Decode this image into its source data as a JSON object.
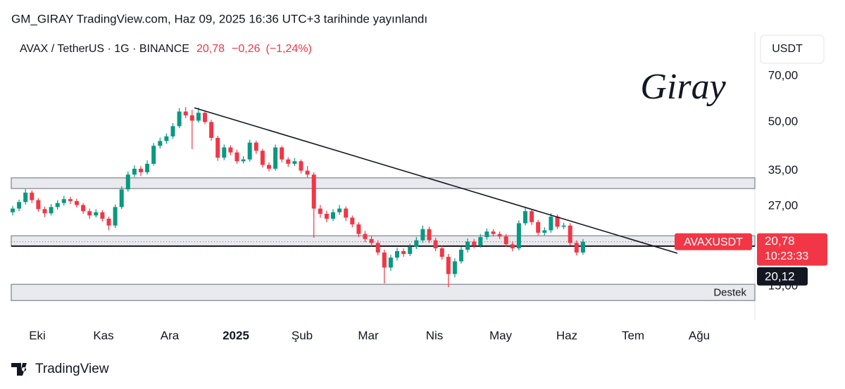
{
  "header": "GM_GIRAY TradingView.com, Haz 09, 2025 16:36 UTC+3 tarihinde yayınlandı",
  "chart_data": {
    "type": "candlestick",
    "symbol": "AVAX / TetherUS · 1G · BINANCE",
    "last": {
      "value": 20.78,
      "label": "20,78"
    },
    "change": {
      "value": -0.26,
      "label": "−0,26"
    },
    "change_pct": {
      "value": -1.24,
      "label": "(−1,24%)"
    },
    "currency": "USDT",
    "ticker": "AVAXUSDT",
    "countdown": "10:23:33",
    "signature": "Giray",
    "x_labels": [
      "Eki",
      "Kas",
      "Ara",
      "2025",
      "Şub",
      "Mar",
      "Nis",
      "May",
      "Haz",
      "Tem",
      "Ağu"
    ],
    "up_color": "#089981",
    "down_color": "#f23645",
    "log_scale": true,
    "ylim": [
      11.7,
      97
    ],
    "yticks": [
      {
        "value": 15,
        "label": "15,00"
      },
      {
        "value": 27,
        "label": "27,00"
      },
      {
        "value": 35,
        "label": "35,00"
      },
      {
        "value": 50,
        "label": "50,00"
      },
      {
        "value": 70,
        "label": "70,00"
      }
    ],
    "zones": [
      {
        "low": 30.7,
        "high": 33.2
      },
      {
        "low": 20.12,
        "high": 21.7
      },
      {
        "low": 13.5,
        "high": 15.2,
        "label": "Destek"
      }
    ],
    "level": {
      "value": 20.12,
      "label": "20,12"
    },
    "trendline": [
      55.5,
      19.1
    ],
    "ohlc": [
      [
        25.8,
        27.0,
        25.2,
        26.5
      ],
      [
        26.5,
        28.3,
        26.0,
        27.8
      ],
      [
        27.8,
        30.6,
        27.3,
        29.8
      ],
      [
        29.8,
        30.3,
        27.6,
        28.2
      ],
      [
        28.2,
        28.6,
        25.9,
        26.4
      ],
      [
        26.4,
        26.9,
        24.9,
        25.6
      ],
      [
        25.6,
        27.4,
        25.2,
        26.8
      ],
      [
        26.8,
        28.2,
        26.3,
        27.6
      ],
      [
        27.6,
        29.1,
        27.1,
        28.4
      ],
      [
        28.4,
        28.9,
        27.4,
        28.0
      ],
      [
        28.0,
        28.5,
        26.7,
        27.2
      ],
      [
        27.2,
        27.6,
        25.5,
        26.0
      ],
      [
        26.0,
        26.5,
        24.6,
        25.2
      ],
      [
        25.2,
        26.4,
        24.8,
        25.8
      ],
      [
        25.8,
        26.2,
        24.1,
        24.6
      ],
      [
        24.6,
        25.0,
        22.6,
        23.4
      ],
      [
        23.4,
        27.3,
        23.0,
        26.8
      ],
      [
        26.8,
        31.2,
        26.4,
        30.5
      ],
      [
        30.5,
        34.8,
        30.0,
        34.0
      ],
      [
        34.0,
        36.4,
        33.4,
        35.5
      ],
      [
        35.5,
        36.2,
        33.6,
        34.6
      ],
      [
        34.6,
        37.8,
        34.0,
        36.8
      ],
      [
        36.8,
        42.9,
        36.3,
        42.0
      ],
      [
        42.0,
        44.6,
        41.2,
        43.5
      ],
      [
        43.5,
        46.0,
        42.6,
        45.0
      ],
      [
        45.0,
        49.6,
        44.2,
        48.5
      ],
      [
        48.5,
        55.4,
        47.8,
        54.0
      ],
      [
        54.0,
        55.8,
        51.4,
        52.5
      ],
      [
        52.5,
        54.6,
        41.0,
        50.5
      ],
      [
        50.5,
        55.6,
        49.8,
        53.5
      ],
      [
        53.5,
        54.2,
        49.2,
        50.0
      ],
      [
        50.0,
        50.8,
        43.6,
        44.5
      ],
      [
        44.5,
        45.2,
        37.6,
        38.5
      ],
      [
        38.5,
        42.4,
        37.8,
        41.5
      ],
      [
        41.5,
        42.2,
        39.2,
        40.0
      ],
      [
        40.0,
        40.8,
        36.8,
        37.5
      ],
      [
        37.5,
        38.9,
        36.9,
        38.0
      ],
      [
        38.0,
        43.9,
        37.4,
        43.0
      ],
      [
        43.0,
        43.6,
        39.6,
        40.5
      ],
      [
        40.5,
        41.1,
        35.8,
        36.5
      ],
      [
        36.5,
        37.2,
        34.8,
        35.5
      ],
      [
        35.5,
        42.4,
        35.0,
        41.5
      ],
      [
        41.5,
        42.0,
        37.2,
        38.0
      ],
      [
        38.0,
        38.6,
        36.0,
        36.8
      ],
      [
        36.8,
        38.4,
        36.2,
        37.5
      ],
      [
        37.5,
        38.0,
        34.3,
        35.0
      ],
      [
        35.0,
        36.2,
        33.2,
        34.0
      ],
      [
        34.0,
        34.6,
        21.4,
        26.5
      ],
      [
        26.5,
        27.2,
        24.8,
        25.5
      ],
      [
        25.5,
        26.1,
        24.0,
        24.6
      ],
      [
        24.6,
        26.4,
        24.2,
        25.8
      ],
      [
        25.8,
        27.2,
        25.3,
        26.5
      ],
      [
        26.5,
        26.9,
        24.2,
        24.8
      ],
      [
        24.8,
        25.2,
        23.1,
        23.6
      ],
      [
        23.6,
        24.0,
        21.5,
        22.0
      ],
      [
        22.0,
        22.5,
        20.7,
        21.2
      ],
      [
        21.2,
        21.7,
        20.1,
        20.6
      ],
      [
        20.6,
        21.0,
        18.8,
        19.2
      ],
      [
        19.2,
        19.6,
        15.3,
        17.2
      ],
      [
        17.2,
        18.9,
        16.8,
        18.5
      ],
      [
        18.5,
        19.9,
        18.1,
        19.4
      ],
      [
        19.4,
        19.8,
        18.6,
        19.0
      ],
      [
        19.0,
        20.5,
        18.7,
        20.0
      ],
      [
        20.0,
        21.5,
        19.7,
        21.0
      ],
      [
        21.0,
        23.4,
        20.6,
        22.8
      ],
      [
        22.8,
        23.2,
        20.6,
        21.0
      ],
      [
        21.0,
        21.4,
        19.4,
        19.8
      ],
      [
        19.8,
        20.2,
        18.2,
        18.6
      ],
      [
        18.6,
        19.0,
        14.9,
        16.4
      ],
      [
        16.4,
        18.4,
        16.0,
        18.0
      ],
      [
        18.0,
        20.0,
        17.7,
        19.6
      ],
      [
        19.6,
        21.3,
        19.2,
        20.8
      ],
      [
        20.8,
        21.2,
        19.8,
        20.2
      ],
      [
        20.2,
        22.0,
        19.9,
        21.5
      ],
      [
        21.5,
        22.9,
        21.1,
        22.4
      ],
      [
        22.4,
        22.8,
        21.6,
        22.0
      ],
      [
        22.0,
        22.4,
        21.2,
        21.6
      ],
      [
        21.6,
        22.0,
        20.0,
        20.4
      ],
      [
        20.4,
        20.8,
        19.4,
        19.8
      ],
      [
        19.8,
        24.3,
        19.5,
        23.8
      ],
      [
        23.8,
        26.8,
        23.4,
        26.0
      ],
      [
        26.0,
        26.4,
        23.5,
        24.0
      ],
      [
        24.0,
        24.4,
        21.8,
        22.2
      ],
      [
        22.2,
        23.1,
        21.8,
        22.6
      ],
      [
        22.6,
        25.6,
        22.2,
        25.0
      ],
      [
        25.0,
        25.4,
        22.8,
        23.2
      ],
      [
        23.2,
        23.9,
        22.8,
        23.4
      ],
      [
        23.4,
        23.8,
        20.2,
        20.6
      ],
      [
        20.6,
        21.0,
        18.8,
        19.2
      ],
      [
        19.2,
        21.2,
        18.9,
        20.78
      ]
    ]
  },
  "footer": "TradingView"
}
